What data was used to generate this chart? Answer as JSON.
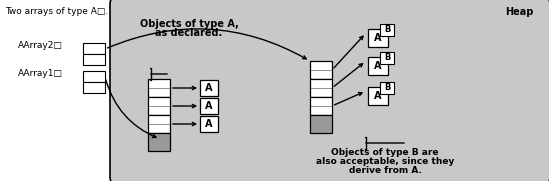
{
  "bg_color": "#ffffff",
  "heap_bg": "#c8c8c8",
  "heap_label": "Heap",
  "left_text_line1": "Two arrays of type A□.",
  "left_label1": "AArray2□",
  "left_label2": "AArray1□",
  "middle_text1": "Objects of type A,",
  "middle_text2": "as declared.",
  "right_text1": "Objects of type B are",
  "right_text2": "also acceptable, since they",
  "right_text3": "derive from A.",
  "box_white": "#ffffff",
  "gray_color": "#999999",
  "dark_gray": "#555555"
}
